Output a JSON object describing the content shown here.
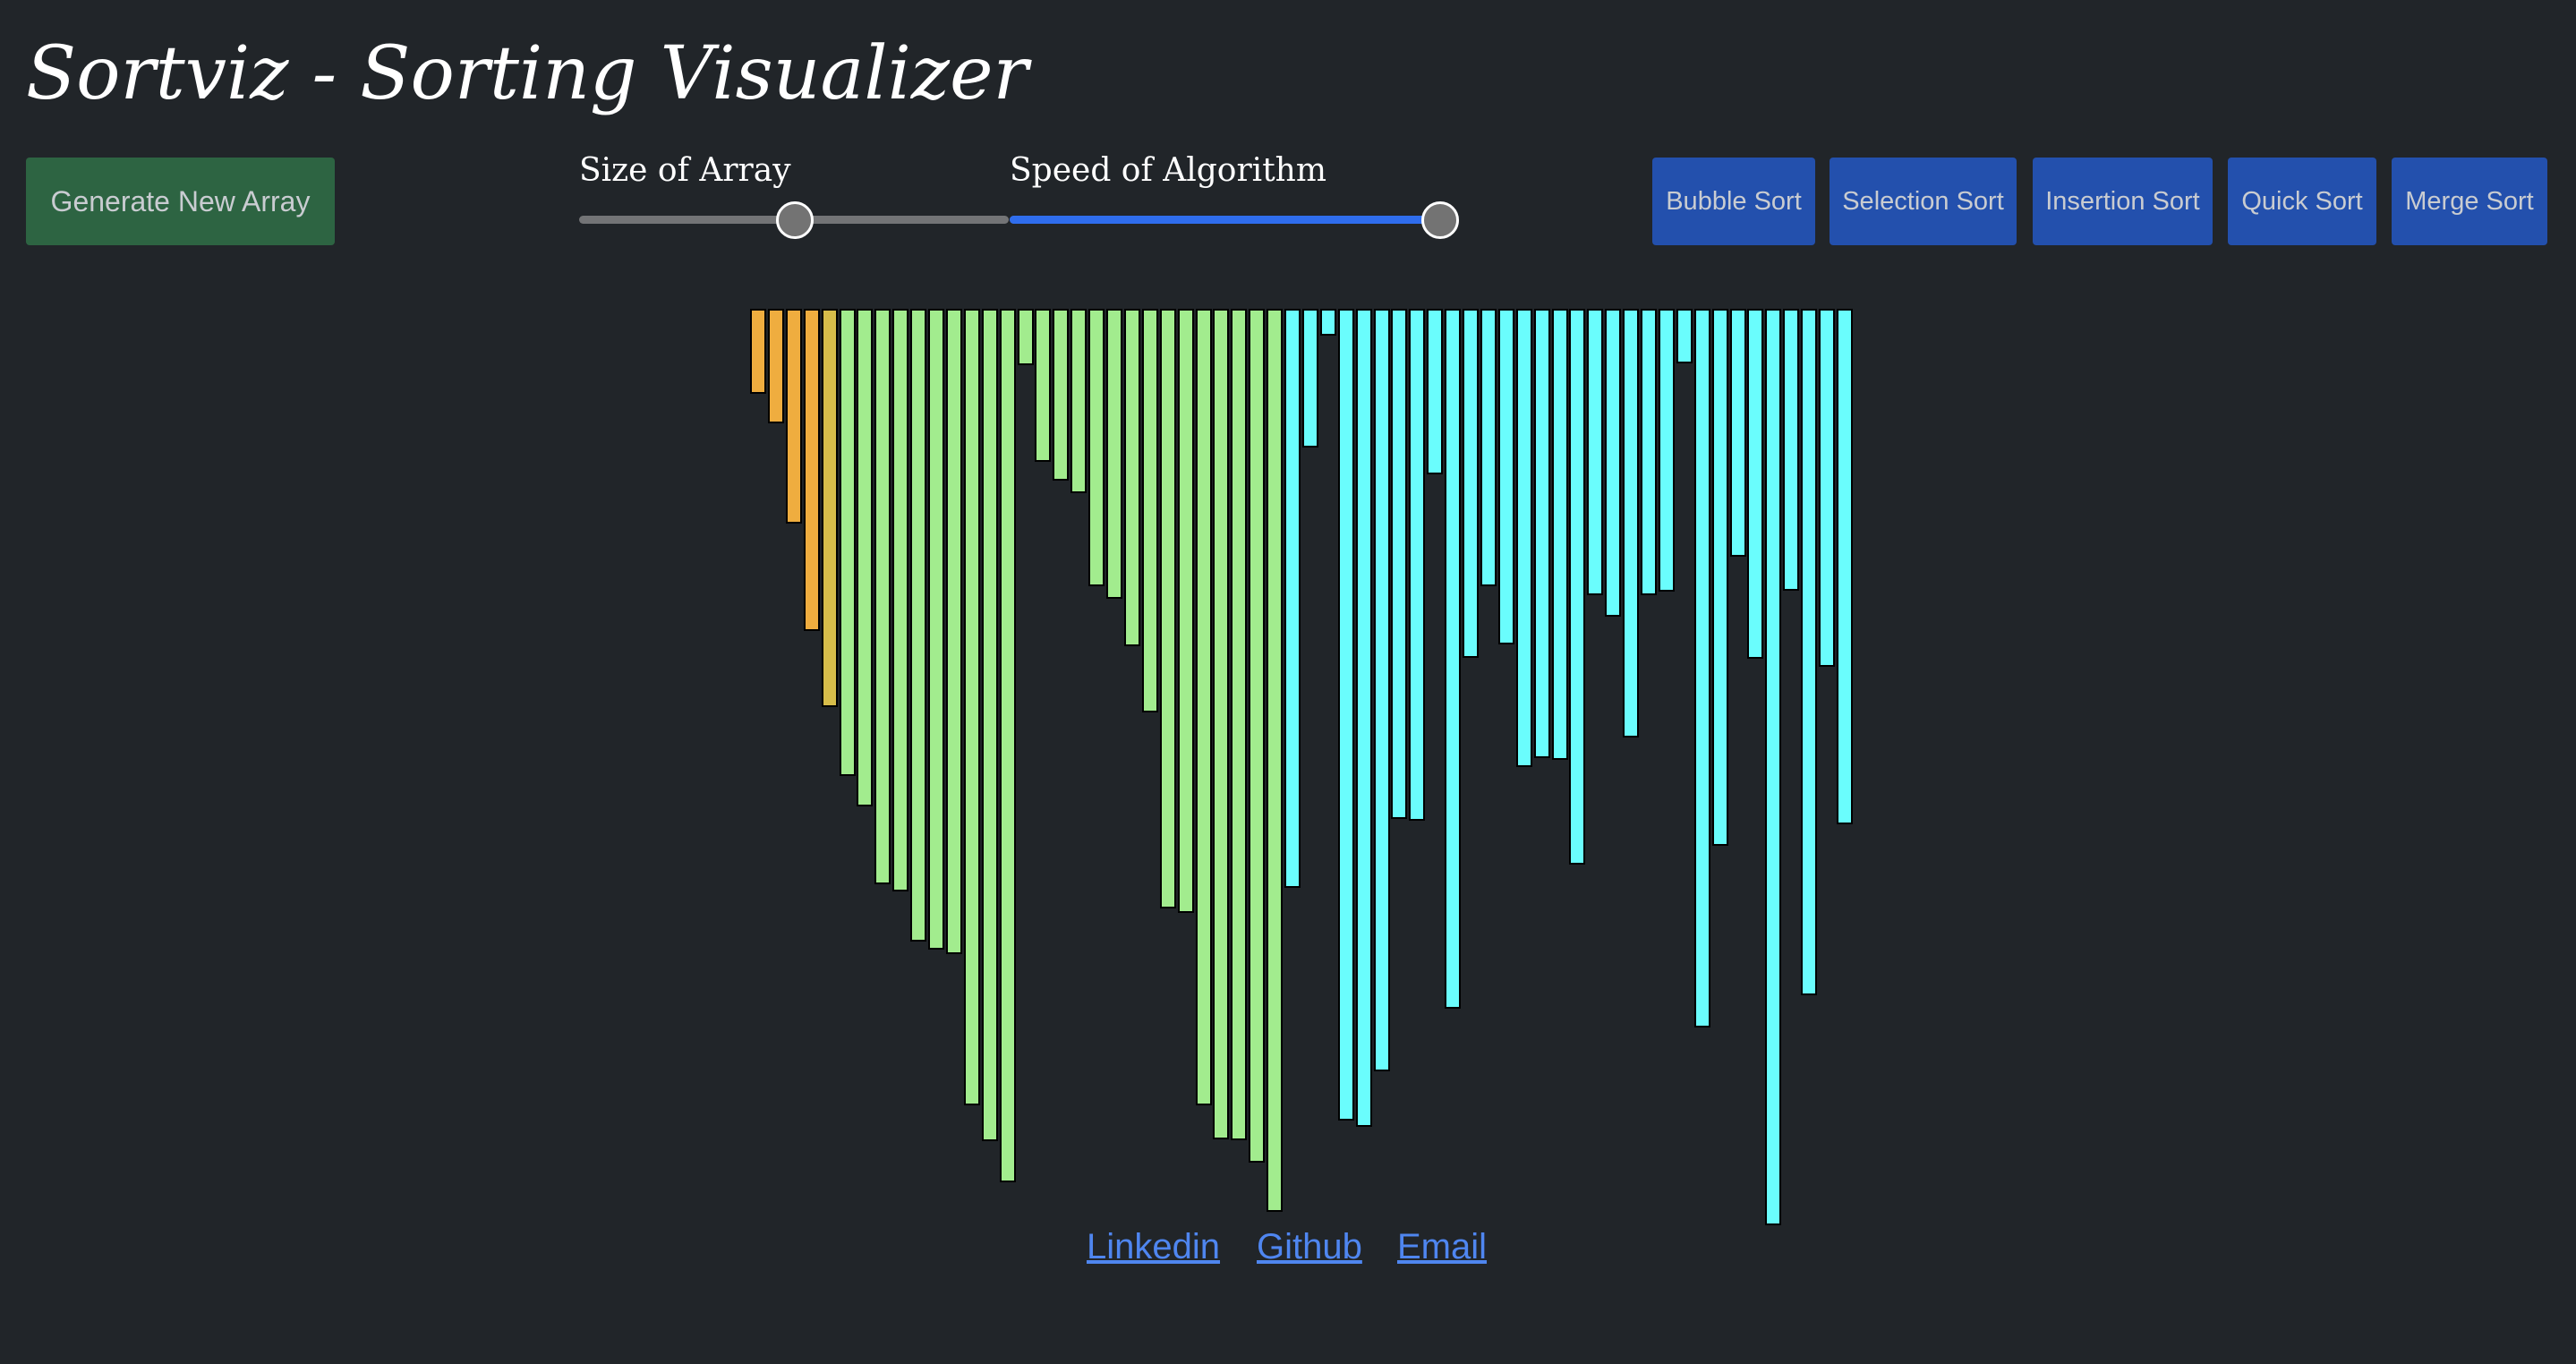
{
  "title": "Sortviz - Sorting Visualizer",
  "controls": {
    "generate_label": "Generate New Array",
    "size_label": "Size of Array",
    "speed_label": "Speed of Algorithm",
    "size_value": 0.5,
    "speed_value": 1.0,
    "slider_fill_color": "#2f6ded",
    "slider_thumb_color": "#737373"
  },
  "sort_buttons": [
    {
      "label": "Bubble Sort"
    },
    {
      "label": "Selection Sort"
    },
    {
      "label": "Insertion Sort"
    },
    {
      "label": "Quick Sort"
    },
    {
      "label": "Merge Sort"
    }
  ],
  "colors": {
    "background": "#212529",
    "generate_button": "#2d6442",
    "sort_button": "#2350ad",
    "bar_orange": "#efad3f",
    "bar_olive": "#d7bd4a",
    "bar_green": "#a2ec8e",
    "bar_cyan": "#6afdfd",
    "link": "#4f86f0"
  },
  "array": {
    "values": [
      65,
      98,
      210,
      330,
      415,
      492,
      526,
      613,
      621,
      677,
      686,
      691,
      860,
      900,
      946,
      33,
      141,
      162,
      176,
      280,
      294,
      347,
      421,
      640,
      645,
      860,
      898,
      899,
      924,
      979,
      617,
      125,
      0,
      877,
      884,
      822,
      540,
      542,
      155,
      752,
      360,
      280,
      345,
      482,
      472,
      474,
      591,
      290,
      314,
      449,
      290,
      286,
      31,
      773,
      570,
      247,
      361,
      994,
      285,
      737,
      370,
      546
    ],
    "states": [
      "orange",
      "orange",
      "orange",
      "orange",
      "olive",
      "green",
      "green",
      "green",
      "green",
      "green",
      "green",
      "green",
      "green",
      "green",
      "green",
      "green",
      "green",
      "green",
      "green",
      "green",
      "green",
      "green",
      "green",
      "green",
      "green",
      "green",
      "green",
      "green",
      "green",
      "green",
      "cyan",
      "cyan",
      "cyan",
      "cyan",
      "cyan",
      "cyan",
      "cyan",
      "cyan",
      "cyan",
      "cyan",
      "cyan",
      "cyan",
      "cyan",
      "cyan",
      "cyan",
      "cyan",
      "cyan",
      "cyan",
      "cyan",
      "cyan",
      "cyan",
      "cyan",
      "cyan",
      "cyan",
      "cyan",
      "cyan",
      "cyan",
      "cyan",
      "cyan",
      "cyan",
      "cyan",
      "cyan"
    ]
  },
  "footer": {
    "links": [
      {
        "label": "Linkedin"
      },
      {
        "label": "Github"
      },
      {
        "label": "Email"
      }
    ]
  }
}
